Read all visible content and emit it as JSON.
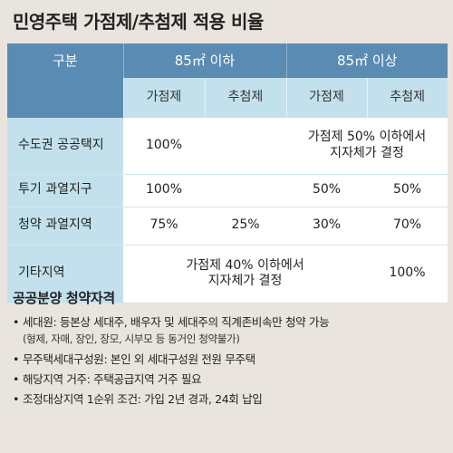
{
  "title": "민영주택 가점제/추첨제 적용 비율",
  "table": {
    "corner": "구분",
    "groups": [
      "85㎡ 이하",
      "85㎡ 이상"
    ],
    "subheaders": [
      "가점제",
      "추첨제",
      "가점제",
      "추첨제"
    ],
    "rows": [
      {
        "label": "수도권 공공택지",
        "c1": "100%",
        "c2": "",
        "merged_34": "가점제 50% 이하에서\n지자체가 결정"
      },
      {
        "label": "투기 과열지구",
        "c1": "100%",
        "c2": "",
        "c3": "50%",
        "c4": "50%"
      },
      {
        "label": "청약 과열지역",
        "c1": "75%",
        "c2": "25%",
        "c3": "30%",
        "c4": "70%"
      },
      {
        "label": "기타지역",
        "merged_123": "가점제 40% 이하에서\n지자체가 결정",
        "c4": "100%"
      }
    ]
  },
  "notes": {
    "title": "공공분양 청약자격",
    "bullet": "•",
    "items": [
      "세대원: 등본상 세대주, 배우자 및 세대주의 직계존비속만 청약 가능",
      "무주택세대구성원: 본인 외 세대구성원 전원 무주택",
      "해당지역 거주: 주택공급지역 거주 필요",
      "조정대상지역 1순위 조건: 가입 2년 경과, 24회 납입"
    ],
    "sub_item": "(형제, 자매, 장인, 장모, 시부모 등 동거인 청약불가)"
  }
}
